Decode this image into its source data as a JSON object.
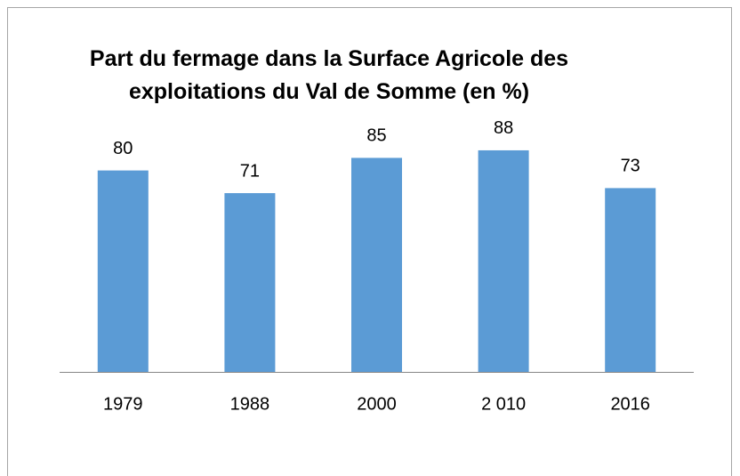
{
  "chart_data": {
    "type": "bar",
    "title": "Part du fermage dans la Surface Agricole des exploitations du Val de Somme (en %)",
    "categories": [
      "1979",
      "1988",
      "2000",
      "2 010",
      "2016"
    ],
    "values": [
      80,
      71,
      85,
      88,
      73
    ],
    "color": "#5b9bd5",
    "ylim": [
      0,
      100
    ]
  }
}
